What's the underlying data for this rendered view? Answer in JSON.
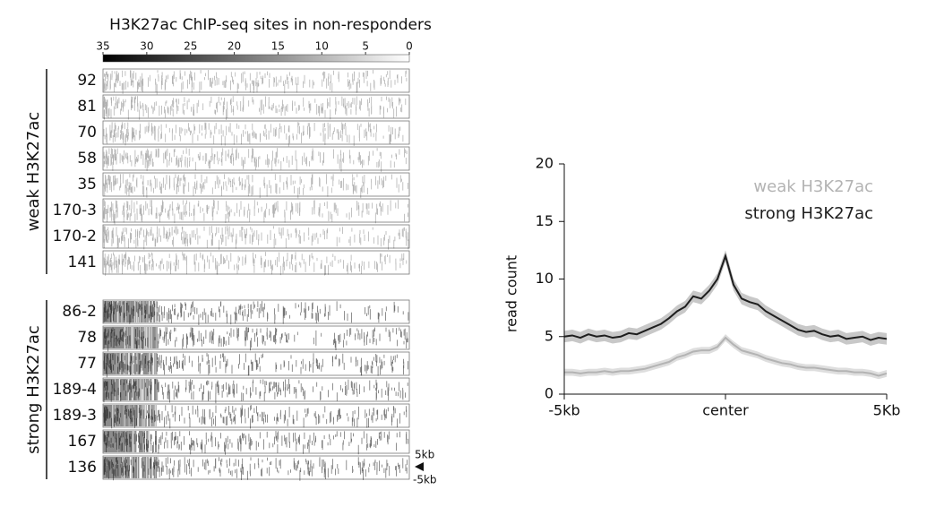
{
  "chart_data": [
    {
      "type": "heatmap",
      "title": "H3K27ac ChIP-seq sites in non-responders",
      "colorbar": {
        "range": [
          35,
          0
        ],
        "ticks": [
          35,
          30,
          25,
          20,
          15,
          10,
          5,
          0
        ]
      },
      "groups": [
        {
          "name": "weak H3K27ac",
          "rows": [
            "92",
            "81",
            "70",
            "58",
            "35",
            "170-3",
            "170-2",
            "141"
          ]
        },
        {
          "name": "strong H3K27ac",
          "rows": [
            "86-2",
            "78",
            "77",
            "189-4",
            "189-3",
            "167",
            "136"
          ]
        }
      ],
      "annotations": [
        "5kb",
        "-5kb"
      ]
    },
    {
      "type": "line",
      "y_label": "read count",
      "x": [
        -5,
        -4.75,
        -4.5,
        -4.25,
        -4,
        -3.75,
        -3.5,
        -3.25,
        -3,
        -2.75,
        -2.5,
        -2.25,
        -2,
        -1.75,
        -1.5,
        -1.25,
        -1,
        -0.75,
        -0.5,
        -0.25,
        0,
        0.25,
        0.5,
        0.75,
        1,
        1.25,
        1.5,
        1.75,
        2,
        2.25,
        2.5,
        2.75,
        3,
        3.25,
        3.5,
        3.75,
        4,
        4.25,
        4.5,
        4.75,
        5
      ],
      "xlim": [
        -5,
        5
      ],
      "xticks": [
        {
          "value": -5,
          "label": "-5kb"
        },
        {
          "value": 0,
          "label": "center"
        },
        {
          "value": 5,
          "label": "5Kb"
        }
      ],
      "ylim": [
        0,
        20
      ],
      "yticks": [
        0,
        5,
        10,
        15,
        20
      ],
      "series": [
        {
          "name": "weak H3K27ac",
          "color": "#b3b3b3",
          "band_color": "#dedede",
          "error": 0.3,
          "values": [
            1.9,
            1.9,
            1.8,
            1.9,
            1.9,
            2.0,
            1.9,
            2.0,
            2.0,
            2.1,
            2.2,
            2.4,
            2.6,
            2.8,
            3.2,
            3.4,
            3.7,
            3.8,
            3.8,
            4.1,
            4.9,
            4.3,
            3.8,
            3.6,
            3.4,
            3.1,
            2.9,
            2.7,
            2.6,
            2.4,
            2.3,
            2.3,
            2.2,
            2.1,
            2.0,
            2.0,
            1.9,
            1.9,
            1.8,
            1.6,
            1.8
          ]
        },
        {
          "name": "strong H3K27ac",
          "color": "#1e1e1e",
          "band_color": "#c8c8c8",
          "error": 0.5,
          "values": [
            5.0,
            5.1,
            4.9,
            5.2,
            5.0,
            5.1,
            4.9,
            5.0,
            5.3,
            5.2,
            5.5,
            5.8,
            6.1,
            6.6,
            7.2,
            7.6,
            8.5,
            8.3,
            9.0,
            10.0,
            12.0,
            9.5,
            8.3,
            8.0,
            7.8,
            7.2,
            6.8,
            6.4,
            6.0,
            5.6,
            5.4,
            5.5,
            5.2,
            5.0,
            5.1,
            4.8,
            4.9,
            5.0,
            4.7,
            4.9,
            4.8
          ]
        }
      ],
      "legend": "upper right"
    }
  ]
}
